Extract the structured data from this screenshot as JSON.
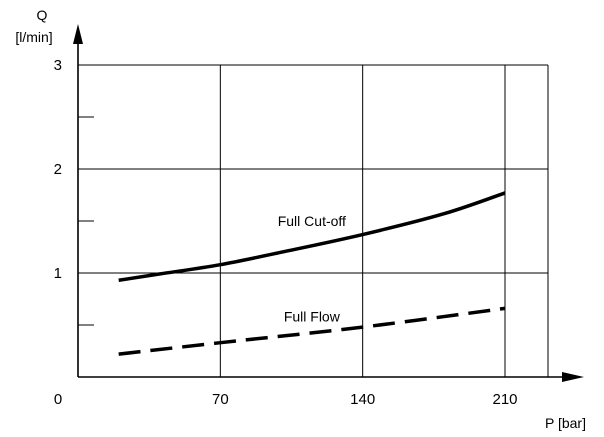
{
  "chart_data": {
    "type": "line",
    "xlabel": "P [bar]",
    "ylabel_line1": "Q",
    "ylabel_line2": "[l/min]",
    "xlim": [
      0,
      230
    ],
    "ylim": [
      0,
      3
    ],
    "x_ticks": [
      0,
      70,
      140,
      210
    ],
    "y_ticks": [
      1,
      2,
      3
    ],
    "y_minor_ticks": [
      0.5,
      1.5,
      2.5
    ],
    "grid": true,
    "series": [
      {
        "name": "Full Cut-off",
        "style": "solid",
        "x": [
          20,
          40,
          70,
          100,
          140,
          180,
          210
        ],
        "y": [
          0.93,
          0.99,
          1.08,
          1.2,
          1.37,
          1.57,
          1.77
        ]
      },
      {
        "name": "Full Flow",
        "style": "dashed",
        "x": [
          20,
          70,
          140,
          210
        ],
        "y": [
          0.22,
          0.33,
          0.48,
          0.66
        ]
      }
    ],
    "annotations": [
      {
        "text": "Full Cut-off",
        "x": 115,
        "y": 1.5
      },
      {
        "text": "Full Flow",
        "x": 115,
        "y": 0.58
      }
    ]
  }
}
